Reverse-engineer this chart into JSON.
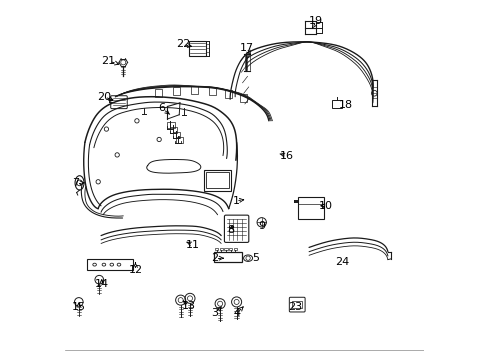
{
  "background_color": "#ffffff",
  "line_color": "#1a1a1a",
  "label_color": "#000000",
  "fig_width": 4.89,
  "fig_height": 3.6,
  "dpi": 100,
  "labels": {
    "1": [
      0.476,
      0.558,
      0.5,
      0.555
    ],
    "2": [
      0.418,
      0.718,
      0.443,
      0.718
    ],
    "3": [
      0.418,
      0.87,
      0.437,
      0.852
    ],
    "4": [
      0.48,
      0.87,
      0.498,
      0.852
    ],
    "5": [
      0.53,
      0.718,
      0.516,
      0.718
    ],
    "6": [
      0.27,
      0.3,
      0.298,
      0.322
    ],
    "7": [
      0.028,
      0.508,
      0.055,
      0.508
    ],
    "8": [
      0.463,
      0.64,
      0.466,
      0.625
    ],
    "9": [
      0.548,
      0.627,
      0.547,
      0.627
    ],
    "10": [
      0.726,
      0.572,
      0.71,
      0.572
    ],
    "11": [
      0.355,
      0.68,
      0.338,
      0.673
    ],
    "12": [
      0.196,
      0.75,
      0.196,
      0.73
    ],
    "13": [
      0.345,
      0.85,
      0.328,
      0.836
    ],
    "14": [
      0.102,
      0.79,
      0.102,
      0.775
    ],
    "15": [
      0.038,
      0.855,
      0.038,
      0.84
    ],
    "16": [
      0.617,
      0.432,
      0.598,
      0.427
    ],
    "17": [
      0.506,
      0.133,
      0.518,
      0.152
    ],
    "18": [
      0.784,
      0.29,
      0.77,
      0.295
    ],
    "19": [
      0.7,
      0.058,
      0.688,
      0.078
    ],
    "20": [
      0.108,
      0.268,
      0.136,
      0.278
    ],
    "21": [
      0.12,
      0.168,
      0.152,
      0.178
    ],
    "22": [
      0.328,
      0.122,
      0.355,
      0.128
    ],
    "23": [
      0.64,
      0.855,
      0.648,
      0.843
    ],
    "24": [
      0.772,
      0.728,
      0.762,
      0.728
    ]
  }
}
